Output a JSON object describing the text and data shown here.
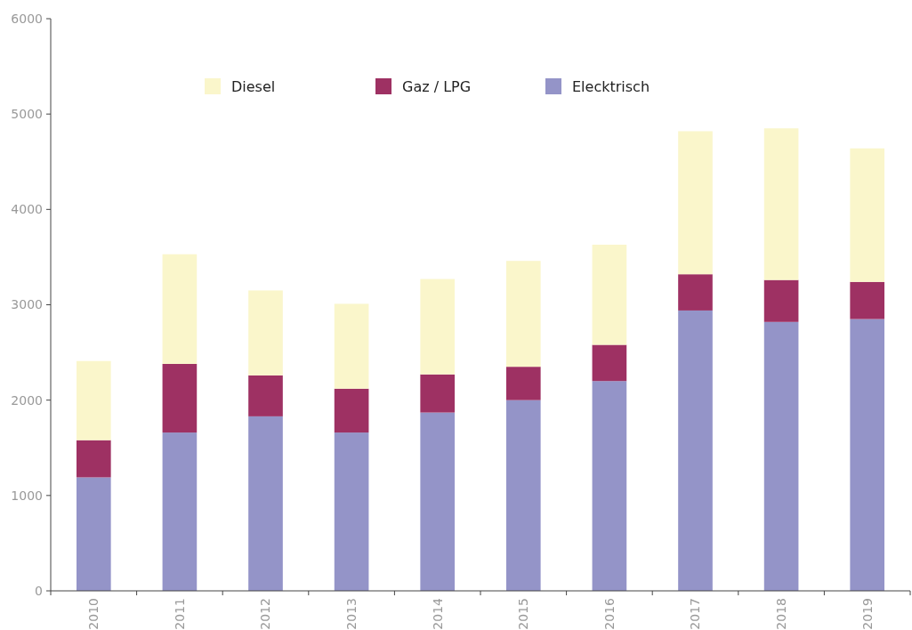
{
  "chart_data": {
    "type": "bar",
    "stacked": true,
    "categories": [
      "2010",
      "2011",
      "2012",
      "2013",
      "2014",
      "2015",
      "2016",
      "2017",
      "2018",
      "2019"
    ],
    "series": [
      {
        "name": "Elecktrisch",
        "color": "#9494c8",
        "values": [
          1190,
          1660,
          1830,
          1660,
          1870,
          2000,
          2200,
          2940,
          2820,
          2850
        ]
      },
      {
        "name": "Gaz / LPG",
        "color": "#9e3163",
        "values": [
          390,
          720,
          430,
          460,
          400,
          350,
          380,
          380,
          440,
          390
        ]
      },
      {
        "name": "Diesel",
        "color": "#faf6cb",
        "values": [
          830,
          1150,
          890,
          890,
          1000,
          1110,
          1050,
          1500,
          1590,
          1400
        ]
      }
    ],
    "ylim": [
      0,
      6000
    ],
    "yticks": [
      0,
      1000,
      2000,
      3000,
      4000,
      5000,
      6000
    ],
    "grid": false,
    "legend": "top"
  }
}
